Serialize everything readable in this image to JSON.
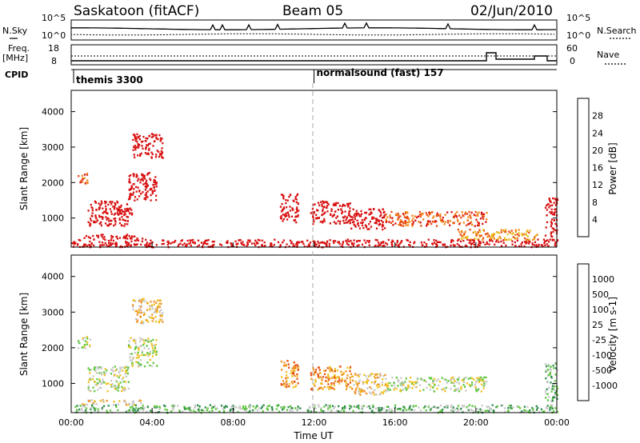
{
  "header": {
    "station": "Saskatoon (fitACF)",
    "beam": "Beam 05",
    "date": "02/Jun/2010"
  },
  "status_panel": {
    "nsky_label": "N.Sky",
    "nsky_ticks": [
      "10^5",
      "10^0"
    ],
    "nsearch_label": "N.Search",
    "nsearch_ticks": [
      "10^5",
      "10^0"
    ],
    "freq_label": "Freq.",
    "freq_unit": "[MHz]",
    "freq_ticks": [
      "18",
      "8"
    ],
    "nave_label": "Nave",
    "nave_ticks": [
      "60",
      "0"
    ],
    "cpid_label": "CPID",
    "cpid_segments": [
      {
        "name": "themis 3300",
        "start_hour": 0
      },
      {
        "name": "normalsound (fast) 157",
        "start_hour": 12
      }
    ]
  },
  "chart_data": [
    {
      "type": "heatmap",
      "title": "",
      "xlabel": "",
      "ylabel": "Slant Range [km]",
      "x_ticks": [
        "00:00",
        "04:00",
        "08:00",
        "12:00",
        "16:00",
        "20:00",
        "00:00"
      ],
      "x_hours": [
        0,
        24
      ],
      "y_ticks": [
        1000,
        2000,
        3000,
        4000
      ],
      "ylim": [
        180,
        4600
      ],
      "colorbar": {
        "label": "Power [dB]",
        "ticks": [
          4,
          8,
          12,
          16,
          20,
          24,
          28
        ],
        "range": [
          0,
          32
        ],
        "colors": [
          "#0a1af0",
          "#2848b8",
          "#3a8a6a",
          "#78b838",
          "#e8c020",
          "#f08818",
          "#e84810",
          "#d81010"
        ]
      },
      "echo_regions": [
        {
          "t": [
            0.3,
            0.8
          ],
          "r": [
            2000,
            2350
          ],
          "v": 6
        },
        {
          "t": [
            0.8,
            2.8
          ],
          "r": [
            800,
            1500
          ],
          "v": 10
        },
        {
          "t": [
            1.8,
            3.0
          ],
          "r": [
            1100,
            1300
          ],
          "v": 16
        },
        {
          "t": [
            2.8,
            4.2
          ],
          "r": [
            1500,
            2300
          ],
          "v": 12
        },
        {
          "t": [
            3.6,
            4.3
          ],
          "r": [
            1900,
            2100
          ],
          "v": 20
        },
        {
          "t": [
            3.0,
            4.5
          ],
          "r": [
            2700,
            3400
          ],
          "v": 8
        },
        {
          "t": [
            0.5,
            3.5
          ],
          "r": [
            420,
            560
          ],
          "v": 14
        },
        {
          "t": [
            0.0,
            24.0
          ],
          "r": [
            200,
            420
          ],
          "v": 14
        },
        {
          "t": [
            10.3,
            11.2
          ],
          "r": [
            900,
            1700
          ],
          "v": 22
        },
        {
          "t": [
            11.8,
            13.8
          ],
          "r": [
            850,
            1500
          ],
          "v": 24
        },
        {
          "t": [
            13.8,
            15.5
          ],
          "r": [
            700,
            1300
          ],
          "v": 12
        },
        {
          "t": [
            15.5,
            20.5
          ],
          "r": [
            800,
            1200
          ],
          "v": 6
        },
        {
          "t": [
            19.0,
            23.0
          ],
          "r": [
            400,
            700
          ],
          "v": 5
        },
        {
          "t": [
            23.4,
            24.0
          ],
          "r": [
            500,
            1600
          ],
          "v": 12
        }
      ]
    },
    {
      "type": "heatmap",
      "title": "",
      "xlabel": "Time UT",
      "ylabel": "Slant Range [km]",
      "x_ticks": [
        "00:00",
        "04:00",
        "08:00",
        "12:00",
        "16:00",
        "20:00",
        "00:00"
      ],
      "x_hours": [
        0,
        24
      ],
      "y_ticks": [
        1000,
        2000,
        3000,
        4000
      ],
      "ylim": [
        180,
        4600
      ],
      "colorbar": {
        "label": "Velocity [m s-1]",
        "ticks": [
          "1000",
          "500",
          "100",
          "25",
          "-25",
          "-100",
          "-500",
          "-1000"
        ],
        "colors": [
          "#1c4cc0",
          "#2c7a8a",
          "#2c8a4a",
          "#5cc83c",
          "#c8c8c8",
          "#f0c020",
          "#f09020",
          "#e85010",
          "#d81010"
        ]
      },
      "echo_regions": [
        {
          "t": [
            0.3,
            0.9
          ],
          "r": [
            2000,
            2350
          ],
          "v": 4
        },
        {
          "t": [
            0.8,
            2.8
          ],
          "r": [
            800,
            1500
          ],
          "v": 4
        },
        {
          "t": [
            2.8,
            4.2
          ],
          "r": [
            1500,
            2300
          ],
          "v": 4
        },
        {
          "t": [
            3.0,
            4.5
          ],
          "r": [
            2700,
            3400
          ],
          "v": 5
        },
        {
          "t": [
            0.5,
            3.5
          ],
          "r": [
            420,
            560
          ],
          "v": 5
        },
        {
          "t": [
            0.0,
            24.0
          ],
          "r": [
            200,
            420
          ],
          "v": 3
        },
        {
          "t": [
            10.3,
            11.2
          ],
          "r": [
            900,
            1700
          ],
          "v": 6
        },
        {
          "t": [
            11.8,
            13.8
          ],
          "r": [
            850,
            1500
          ],
          "v": 6
        },
        {
          "t": [
            13.8,
            15.5
          ],
          "r": [
            700,
            1300
          ],
          "v": 5
        },
        {
          "t": [
            15.5,
            20.5
          ],
          "r": [
            800,
            1200
          ],
          "v": 4
        },
        {
          "t": [
            23.4,
            24.0
          ],
          "r": [
            500,
            1600
          ],
          "v": 3
        }
      ]
    }
  ]
}
